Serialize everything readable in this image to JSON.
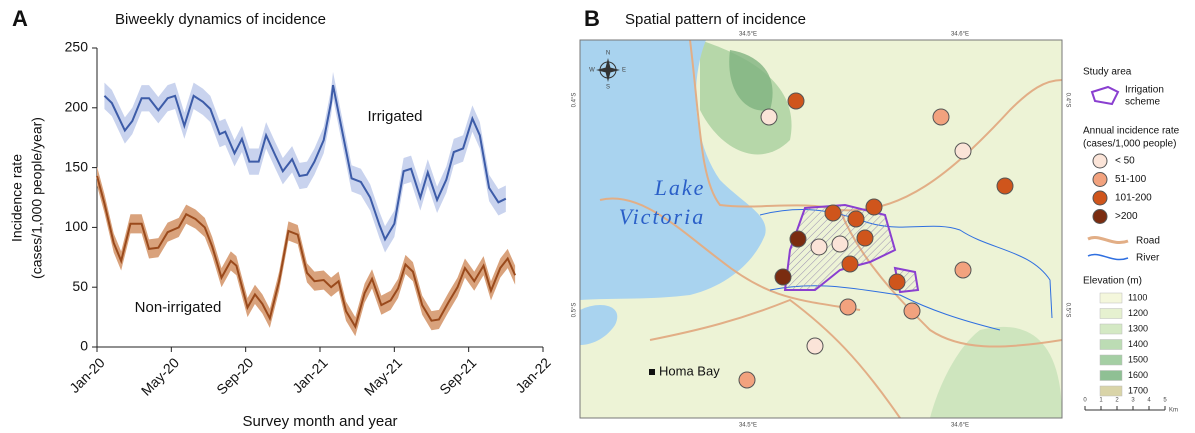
{
  "chart_data": [
    {
      "type": "line",
      "panel": "A",
      "title": "Biweekly dynamics of incidence",
      "ylabel": [
        "Incidence rate",
        "(cases/1,000 people/year)"
      ],
      "xlabel": "Survey  month and year",
      "xlim": [
        0,
        24
      ],
      "xticks": [
        {
          "value": 0,
          "label": "Jan-20"
        },
        {
          "value": 4,
          "label": "May-20"
        },
        {
          "value": 8,
          "label": "Sep-20"
        },
        {
          "value": 12,
          "label": "Jan-21"
        },
        {
          "value": 16,
          "label": "May-21"
        },
        {
          "value": 20,
          "label": "Sep-21"
        },
        {
          "value": 24,
          "label": "Jan-22"
        }
      ],
      "ylim": [
        0,
        250
      ],
      "yticks": [
        0,
        50,
        100,
        150,
        200,
        250
      ],
      "series": [
        {
          "name": "Irrigated",
          "color": "#3d5ca8",
          "band_color": "#c9d3ee",
          "x": [
            0.4,
            0.8,
            1.5,
            1.9,
            2.4,
            2.8,
            3.3,
            3.8,
            4.2,
            4.7,
            5.2,
            5.7,
            6.1,
            6.6,
            6.9,
            7.4,
            7.8,
            8.2,
            8.7,
            9.1,
            9.6,
            10.0,
            10.5,
            10.9,
            11.3,
            11.7,
            12.2,
            12.6,
            12.7,
            13.2,
            13.7,
            14.2,
            14.7,
            15.2,
            15.5,
            16.0,
            16.5,
            16.9,
            17.4,
            17.8,
            18.3,
            18.8,
            19.2,
            19.7,
            20.2,
            20.6,
            21.1,
            21.6,
            22.0
          ],
          "values": [
            210,
            204,
            181,
            189,
            208,
            208,
            198,
            208,
            210,
            185,
            210,
            205,
            199,
            178,
            180,
            162,
            174,
            155,
            155,
            177,
            160,
            147,
            157,
            143,
            144,
            155,
            173,
            205,
            219,
            180,
            141,
            138,
            125,
            102,
            90,
            103,
            147,
            149,
            125,
            146,
            123,
            140,
            163,
            166,
            191,
            177,
            133,
            121,
            124
          ],
          "errors": [
            11,
            11,
            11,
            11,
            11,
            11,
            11,
            11,
            11,
            11,
            11,
            11,
            11,
            11,
            11,
            11,
            11,
            11,
            11,
            11,
            11,
            11,
            11,
            11,
            11,
            11,
            11,
            11,
            11,
            11,
            11,
            11,
            11,
            11,
            11,
            11,
            11,
            11,
            11,
            11,
            11,
            11,
            11,
            11,
            11,
            11,
            11,
            11,
            11
          ]
        },
        {
          "name": "Non-irrigated",
          "color": "#9a4a1c",
          "band_color": "#d9a27c",
          "x": [
            0,
            0.4,
            0.9,
            1.3,
            1.8,
            2.4,
            2.8,
            3.3,
            3.8,
            4.4,
            4.8,
            5.3,
            5.8,
            6.2,
            6.7,
            7.2,
            7.5,
            8.1,
            8.5,
            8.9,
            9.3,
            9.8,
            10.3,
            10.8,
            11.3,
            11.7,
            12.2,
            12.6,
            13.0,
            13.4,
            13.9,
            14.4,
            14.8,
            15.3,
            15.8,
            16.2,
            16.6,
            17.0,
            17.5,
            18.0,
            18.4,
            18.9,
            19.4,
            19.8,
            20.3,
            20.8,
            21.2,
            21.7,
            22.1,
            22.5
          ],
          "values": [
            143,
            120,
            87,
            72,
            103,
            103,
            82,
            83,
            96,
            100,
            111,
            107,
            100,
            84,
            58,
            72,
            68,
            33,
            44,
            36,
            24,
            55,
            97,
            94,
            62,
            55,
            56,
            50,
            55,
            30,
            17,
            45,
            57,
            35,
            39,
            49,
            69,
            63,
            35,
            22,
            23,
            37,
            50,
            66,
            55,
            68,
            47,
            66,
            74,
            60
          ],
          "errors": [
            8,
            8,
            8,
            8,
            8,
            8,
            8,
            8,
            8,
            8,
            8,
            8,
            8,
            8,
            8,
            8,
            8,
            8,
            8,
            8,
            8,
            8,
            8,
            8,
            8,
            8,
            8,
            8,
            8,
            8,
            8,
            8,
            8,
            8,
            8,
            8,
            8,
            8,
            8,
            8,
            8,
            8,
            8,
            8,
            8,
            8,
            8,
            8,
            8,
            8
          ]
        }
      ]
    },
    {
      "type": "map",
      "panel": "B",
      "title": "Spatial pattern of incidence",
      "lake_label": [
        "Lake",
        "Victoria"
      ],
      "town": "Homa Bay",
      "lon_labels": [
        "34.5°E",
        "34.6°E"
      ],
      "lat_labels": [
        "0.4°S",
        "0.5°S"
      ],
      "compass": [
        "N",
        "S",
        "E",
        "W"
      ],
      "study_area": {
        "title": "Study area",
        "label": [
          "Irrigation",
          "scheme"
        ],
        "color": "#8a3fd0"
      },
      "incidence": {
        "title": [
          "Annual incidence rate",
          "(cases/1,000 people)"
        ],
        "labels": [
          "< 50",
          "51-100",
          "101-200",
          ">200"
        ],
        "colors": [
          "#fbe4d8",
          "#f2a27e",
          "#cf551c",
          "#7a2c10"
        ]
      },
      "lines": [
        {
          "label": "Road",
          "color": "#e2ae86"
        },
        {
          "label": "River",
          "color": "#2f6fe0"
        }
      ],
      "elevation": {
        "title": "Elevation (m)",
        "values": [
          1100,
          1200,
          1300,
          1400,
          1500,
          1600,
          1700
        ],
        "colors": [
          "#f4f7dc",
          "#e6f1d0",
          "#d4e9c4",
          "#bcdcb4",
          "#a5cfa4",
          "#8fc094",
          "#d9d4a8"
        ]
      },
      "scale": {
        "ticks": [
          0,
          1,
          2,
          3,
          4,
          5
        ],
        "unit": "Km"
      }
    }
  ]
}
